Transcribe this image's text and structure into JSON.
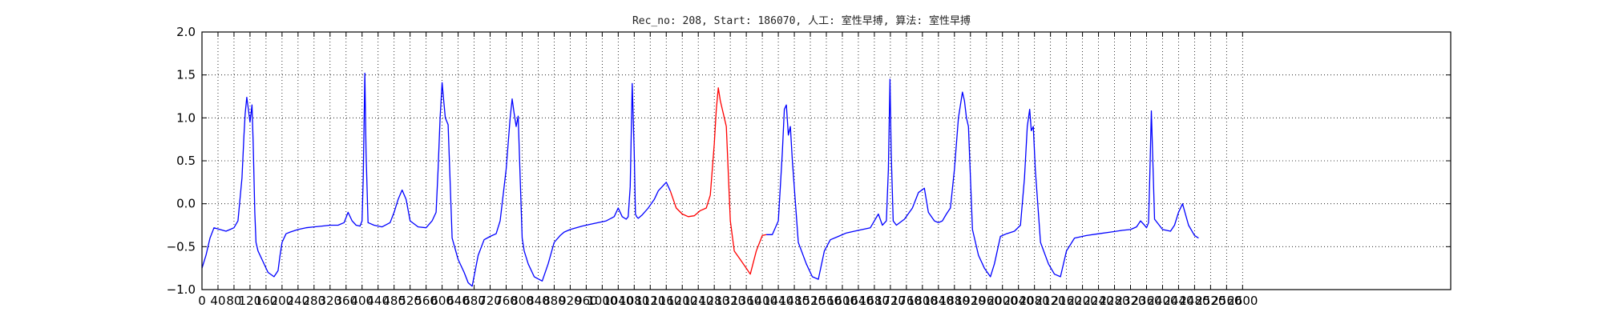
{
  "chart_data": {
    "type": "line",
    "title": "Rec_no: 208, Start: 186070, 人工: 室性早搏, 算法: 室性早搏",
    "xlabel": "",
    "ylabel": "",
    "xlim": [
      0,
      3120
    ],
    "ylim": [
      -1.0,
      2.0
    ],
    "grid": true,
    "y_ticks": [
      -1.0,
      -0.5,
      0.0,
      0.5,
      1.0,
      1.5,
      2.0
    ],
    "y_tick_labels": [
      "−1.0",
      "−0.5",
      "0.0",
      "0.5",
      "1.0",
      "1.5",
      "2.0"
    ],
    "x_ticks": [
      0,
      40,
      80,
      120,
      160,
      200,
      240,
      280,
      320,
      360,
      400,
      440,
      480,
      520,
      560,
      600,
      640,
      680,
      720,
      760,
      800,
      840,
      880,
      920,
      960,
      1000,
      1040,
      1080,
      1120,
      1160,
      1200,
      1240,
      1280,
      1320,
      1360,
      1400,
      1440,
      1480,
      1520,
      1560,
      1600,
      1640,
      1680,
      1720,
      1760,
      1800,
      1840,
      1880,
      1920,
      1960,
      2000,
      2040,
      2080,
      2120,
      2160,
      2200,
      2240,
      2280,
      2320,
      2360,
      2400,
      2440,
      2480,
      2520,
      2560,
      2600
    ],
    "x_tick_labels": [
      "0",
      "40",
      "80",
      "120",
      "160",
      "200",
      "240",
      "280",
      "320",
      "360",
      "400",
      "440",
      "480",
      "520",
      "560",
      "600",
      "640",
      "680",
      "720",
      "760",
      "800",
      "840",
      "880",
      "920",
      "960",
      "1000",
      "1040",
      "1080",
      "1120",
      "1160",
      "1200",
      "1240",
      "1280",
      "1320",
      "1360",
      "1400",
      "1440",
      "1480",
      "1520",
      "1560",
      "1600",
      "1640",
      "1680",
      "1720",
      "1760",
      "1800",
      "1840",
      "1880",
      "1920",
      "1960",
      "2000",
      "2040",
      "2080",
      "2120",
      "2160",
      "2200",
      "2240",
      "2280",
      "2320",
      "2360",
      "2400",
      "2440",
      "2480",
      "2520",
      "2560",
      "2600"
    ],
    "series": [
      {
        "color": "#0000ff",
        "x": [
          0,
          10,
          20,
          30,
          45,
          60,
          70,
          80,
          90,
          100,
          105,
          108,
          112,
          116,
          120,
          125,
          128,
          132,
          135,
          140,
          150,
          165,
          180,
          190,
          195,
          200,
          210,
          220,
          240,
          260,
          280,
          300,
          320,
          340,
          355,
          365,
          375,
          385,
          395,
          400,
          403,
          407,
          410,
          415,
          430,
          450,
          470,
          480,
          490,
          500,
          510,
          520,
          540,
          560,
          575,
          585,
          590,
          595,
          600,
          604,
          608,
          615,
          625,
          640,
          655,
          665,
          675,
          690,
          705,
          720,
          735,
          745,
          760,
          770,
          775,
          780,
          785,
          790,
          795,
          800,
          805,
          815,
          830,
          850,
          865,
          880,
          895,
          905,
          920,
          935,
          950,
          970,
          990,
          1010,
          1030,
          1040,
          1050,
          1060,
          1065,
          1070,
          1075,
          1080,
          1083,
          1086,
          1090,
          1095,
          1100,
          1115,
          1130,
          1140,
          1150,
          1160,
          1170
        ],
        "y": [
          -0.75,
          -0.6,
          -0.4,
          -0.28,
          -0.3,
          -0.32,
          -0.3,
          -0.28,
          -0.2,
          0.3,
          0.8,
          1.05,
          1.24,
          1.1,
          0.95,
          1.15,
          0.7,
          -0.1,
          -0.45,
          -0.55,
          -0.65,
          -0.8,
          -0.85,
          -0.78,
          -0.6,
          -0.45,
          -0.35,
          -0.33,
          -0.3,
          -0.28,
          -0.27,
          -0.26,
          -0.25,
          -0.25,
          -0.22,
          -0.1,
          -0.2,
          -0.25,
          -0.26,
          -0.2,
          0.3,
          1.52,
          0.6,
          -0.22,
          -0.25,
          -0.27,
          -0.22,
          -0.1,
          0.05,
          0.16,
          0.05,
          -0.2,
          -0.27,
          -0.28,
          -0.2,
          -0.1,
          0.4,
          1.0,
          1.41,
          1.2,
          1.0,
          0.92,
          -0.4,
          -0.65,
          -0.8,
          -0.92,
          -0.96,
          -0.6,
          -0.42,
          -0.38,
          -0.35,
          -0.2,
          0.4,
          1.0,
          1.22,
          1.05,
          0.9,
          1.02,
          0.3,
          -0.4,
          -0.55,
          -0.7,
          -0.85,
          -0.9,
          -0.7,
          -0.45,
          -0.37,
          -0.33,
          -0.3,
          -0.28,
          -0.26,
          -0.24,
          -0.22,
          -0.2,
          -0.15,
          -0.05,
          -0.15,
          -0.18,
          -0.15,
          0.2,
          1.4,
          0.6,
          -0.12,
          -0.15,
          -0.17,
          -0.15,
          -0.13,
          -0.05,
          0.05,
          0.15,
          0.2,
          0.25,
          0.15
        ]
      },
      {
        "color": "#ff0000",
        "x": [
          1170,
          1185,
          1200,
          1215,
          1230,
          1245,
          1260,
          1270,
          1280,
          1285,
          1290,
          1295,
          1300,
          1305,
          1310,
          1320,
          1330,
          1345,
          1360,
          1370,
          1385,
          1400,
          1410
        ],
        "y": [
          0.15,
          -0.05,
          -0.12,
          -0.15,
          -0.14,
          -0.08,
          -0.05,
          0.1,
          0.7,
          1.1,
          1.35,
          1.2,
          1.1,
          1.0,
          0.9,
          -0.2,
          -0.55,
          -0.65,
          -0.75,
          -0.82,
          -0.55,
          -0.37,
          -0.36
        ]
      },
      {
        "color": "#0000ff",
        "x": [
          1410,
          1425,
          1440,
          1450,
          1455,
          1460,
          1465,
          1470,
          1475,
          1490,
          1510,
          1525,
          1540,
          1555,
          1570,
          1590,
          1610,
          1630,
          1650,
          1670,
          1680,
          1690,
          1700,
          1710,
          1715,
          1719,
          1722,
          1727,
          1735,
          1755,
          1775,
          1790,
          1805,
          1815,
          1830,
          1840,
          1850,
          1860,
          1870,
          1880,
          1890,
          1900,
          1905,
          1910,
          1915,
          1925,
          1940,
          1955,
          1970,
          1980,
          1995,
          2010,
          2030,
          2045,
          2055,
          2062,
          2068,
          2072,
          2077,
          2082,
          2095,
          2115,
          2130,
          2145,
          2160,
          2180,
          2210,
          2240,
          2270,
          2300,
          2320,
          2335,
          2345,
          2355,
          2360,
          2365,
          2368,
          2372,
          2380,
          2400,
          2420,
          2430,
          2440,
          2450,
          2465,
          2480,
          2490
        ],
        "y": [
          -0.36,
          -0.36,
          -0.2,
          0.6,
          1.1,
          1.15,
          0.8,
          0.9,
          0.5,
          -0.45,
          -0.7,
          -0.85,
          -0.88,
          -0.55,
          -0.42,
          -0.38,
          -0.34,
          -0.32,
          -0.3,
          -0.28,
          -0.2,
          -0.12,
          -0.25,
          -0.2,
          0.4,
          1.45,
          0.6,
          -0.2,
          -0.25,
          -0.18,
          -0.05,
          0.13,
          0.18,
          -0.1,
          -0.2,
          -0.22,
          -0.2,
          -0.12,
          -0.05,
          0.4,
          1.0,
          1.3,
          1.2,
          1.0,
          0.9,
          -0.3,
          -0.6,
          -0.75,
          -0.85,
          -0.7,
          -0.38,
          -0.35,
          -0.32,
          -0.25,
          0.3,
          0.9,
          1.1,
          0.85,
          0.9,
          0.4,
          -0.45,
          -0.7,
          -0.82,
          -0.85,
          -0.55,
          -0.4,
          -0.37,
          -0.35,
          -0.33,
          -0.31,
          -0.3,
          -0.27,
          -0.2,
          -0.25,
          -0.28,
          -0.22,
          0.3,
          1.08,
          -0.18,
          -0.3,
          -0.32,
          -0.25,
          -0.1,
          0.0,
          -0.25,
          -0.37,
          -0.4
        ]
      }
    ]
  }
}
